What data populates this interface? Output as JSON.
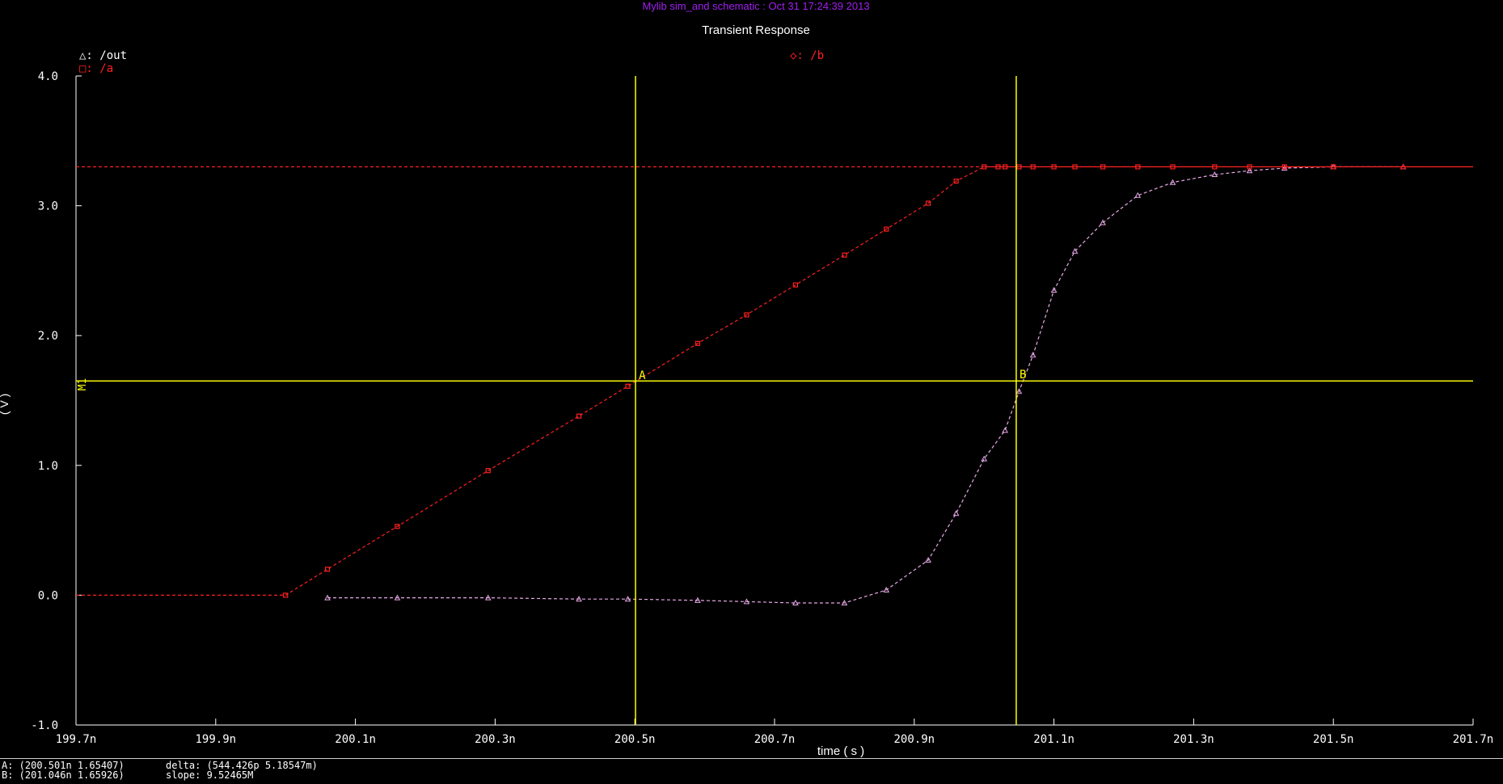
{
  "window": {
    "header": "Mylib sim_and schematic : Oct 31 17:24:39 2013",
    "header_color": "#a020f0"
  },
  "chart_data": {
    "type": "line",
    "title": "Transient Response",
    "xlabel": "time ( s )",
    "ylabel": "( V )",
    "xlim": [
      199.7,
      201.7
    ],
    "ylim": [
      -1.0,
      4.0
    ],
    "x_ticks": [
      199.7,
      199.9,
      200.1,
      200.3,
      200.5,
      200.7,
      200.9,
      201.1,
      201.3,
      201.5,
      201.7
    ],
    "x_tick_labels": [
      "199.7n",
      "199.9n",
      "200.1n",
      "200.3n",
      "200.5n",
      "200.7n",
      "200.9n",
      "201.1n",
      "201.3n",
      "201.5n",
      "201.7n"
    ],
    "y_ticks": [
      -1.0,
      0.0,
      1.0,
      2.0,
      3.0,
      4.0
    ],
    "y_tick_labels": [
      "-1.0",
      "0.0",
      "1.0",
      "2.0",
      "3.0",
      "4.0"
    ],
    "grid": false,
    "series": [
      {
        "name": "/out",
        "legend_symbol": "△",
        "color": "#e6a8e6",
        "x": [
          200.06,
          200.16,
          200.29,
          200.42,
          200.49,
          200.59,
          200.66,
          200.73,
          200.8,
          200.86,
          200.92,
          200.96,
          201.0,
          201.03,
          201.05,
          201.07,
          201.1,
          201.13,
          201.17,
          201.22,
          201.27,
          201.33,
          201.38,
          201.43,
          201.5,
          201.6
        ],
        "y": [
          -0.02,
          -0.02,
          -0.02,
          -0.03,
          -0.03,
          -0.04,
          -0.05,
          -0.06,
          -0.06,
          0.04,
          0.27,
          0.63,
          1.05,
          1.27,
          1.57,
          1.85,
          2.35,
          2.65,
          2.87,
          3.08,
          3.18,
          3.24,
          3.27,
          3.29,
          3.3,
          3.3
        ]
      },
      {
        "name": "/a",
        "legend_symbol": "□",
        "color": "#ff2020",
        "x": [
          199.7,
          200.0,
          200.06,
          200.16,
          200.29,
          200.42,
          200.49,
          200.59,
          200.66,
          200.73,
          200.8,
          200.86,
          200.92,
          200.96,
          201.0,
          201.02,
          201.03,
          201.05,
          201.07,
          201.1,
          201.13,
          201.17,
          201.22,
          201.27,
          201.33,
          201.38,
          201.43,
          201.5,
          201.7
        ],
        "y": [
          0.0,
          0.0,
          0.2,
          0.53,
          0.96,
          1.38,
          1.61,
          1.94,
          2.16,
          2.39,
          2.62,
          2.82,
          3.02,
          3.19,
          3.3,
          3.3,
          3.3,
          3.3,
          3.3,
          3.3,
          3.3,
          3.3,
          3.3,
          3.3,
          3.3,
          3.3,
          3.3,
          3.3,
          3.3
        ]
      },
      {
        "name": "/b",
        "legend_symbol": "◇",
        "color": "#ff2020",
        "x": [
          199.7,
          201.6,
          201.7
        ],
        "y": [
          3.3,
          3.3,
          3.3
        ]
      }
    ],
    "markers": [
      {
        "label": "M1",
        "type": "horizontal",
        "y": 1.65,
        "color": "#ffff00"
      },
      {
        "label": "A",
        "type": "vertical",
        "x": 200.501,
        "y": 1.65407,
        "color": "#ffff00"
      },
      {
        "label": "B",
        "type": "vertical",
        "x": 201.046,
        "y": 1.65926,
        "color": "#ffff00"
      }
    ]
  },
  "status": {
    "a_readout": "A: (200.501n 1.65407)",
    "b_readout": "B: (201.046n 1.65926)",
    "delta_readout": "delta: (544.426p 5.18547m)",
    "slope_readout": "slope: 9.52465M"
  }
}
